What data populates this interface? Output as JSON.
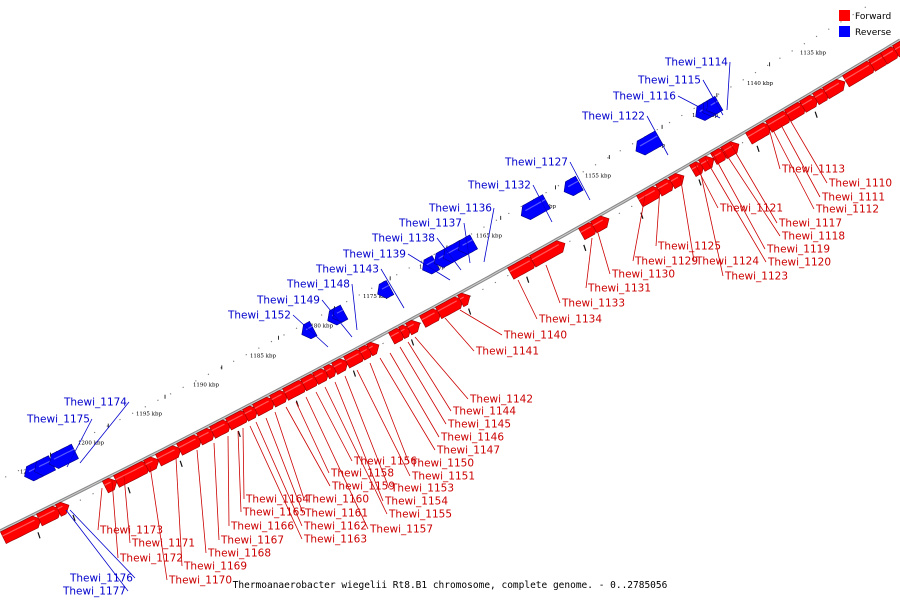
{
  "caption": "Thermoanaerobacter wiegelii Rt8.B1 chromosome, complete genome. - 0..2785056",
  "legend": [
    {
      "label": "Forward",
      "color": "#ff0000"
    },
    {
      "label": "Reverse",
      "color": "#0000ff"
    }
  ],
  "colors": {
    "forward": "#ff0000",
    "reverse": "#0000ff",
    "forward_label": "#cc0000",
    "reverse_label": "#0000cc"
  },
  "kbp_ticks": [
    "1135 kbp",
    "1140 kbp",
    "1145 kbp",
    "1150 kbp",
    "1155 kbp",
    "1160 kbp",
    "1165 kbp",
    "1170 kbp",
    "1175 kbp",
    "1180 kbp",
    "1185 kbp",
    "1190 kbp",
    "1195 kbp",
    "1200 kbp",
    "1205 kbp"
  ],
  "reverse_genes": [
    "Thewi_1114",
    "Thewi_1115",
    "Thewi_1116",
    "Thewi_1122",
    "Thewi_1127",
    "Thewi_1132",
    "Thewi_1136",
    "Thewi_1137",
    "Thewi_1138",
    "Thewi_1139",
    "Thewi_1143",
    "Thewi_1148",
    "Thewi_1149",
    "Thewi_1152",
    "Thewi_1174",
    "Thewi_1175",
    "Thewi_1176",
    "Thewi_1177"
  ],
  "forward_genes": [
    "Thewi_1113",
    "Thewi_1110",
    "Thewi_1111",
    "Thewi_1112",
    "Thewi_1117",
    "Thewi_1118",
    "Thewi_1119",
    "Thewi_1120",
    "Thewi_1121",
    "Thewi_1123",
    "Thewi_1124",
    "Thewi_1125",
    "Thewi_1129",
    "Thewi_1130",
    "Thewi_1131",
    "Thewi_1133",
    "Thewi_1134",
    "Thewi_1140",
    "Thewi_1141",
    "Thewi_1142",
    "Thewi_1144",
    "Thewi_1145",
    "Thewi_1146",
    "Thewi_1147",
    "Thewi_1150",
    "Thewi_1151",
    "Thewi_1153",
    "Thewi_1154",
    "Thewi_1155",
    "Thewi_1156",
    "Thewi_1157",
    "Thewi_1158",
    "Thewi_1159",
    "Thewi_1160",
    "Thewi_1161",
    "Thewi_1162",
    "Thewi_1163",
    "Thewi_1164",
    "Thewi_1165",
    "Thewi_1166",
    "Thewi_1167",
    "Thewi_1168",
    "Thewi_1169",
    "Thewi_1170",
    "Thewi_1171",
    "Thewi_1172",
    "Thewi_1173"
  ]
}
